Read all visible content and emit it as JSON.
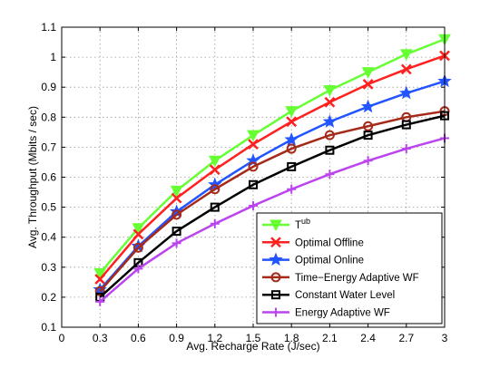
{
  "chart_data": {
    "type": "line",
    "xlabel": "Avg. Recharge Rate (J/sec)",
    "ylabel": "Avg. Throughput (Mbits / sec)",
    "xlim": [
      0,
      3
    ],
    "ylim": [
      0.1,
      1.1
    ],
    "xticks": [
      0,
      0.3,
      0.6,
      0.9,
      1.2,
      1.5,
      1.8,
      2.1,
      2.4,
      2.7,
      3
    ],
    "xtick_labels": [
      "0",
      "0.3",
      "0.6",
      "0.9",
      "1.2",
      "1.5",
      "1.8",
      "2.1",
      "2.4",
      "2.7",
      "3"
    ],
    "yticks": [
      0.1,
      0.2,
      0.3,
      0.4,
      0.5,
      0.6,
      0.7,
      0.8,
      0.9,
      1,
      1.1
    ],
    "ytick_labels": [
      "0.1",
      "0.2",
      "0.3",
      "0.4",
      "0.5",
      "0.6",
      "0.7",
      "0.8",
      "0.9",
      "1",
      "1.1"
    ],
    "grid": true,
    "legend_position": "bottom-right",
    "x": [
      0.3,
      0.6,
      0.9,
      1.2,
      1.5,
      1.8,
      2.1,
      2.4,
      2.7,
      3.0
    ],
    "series": [
      {
        "name": "T",
        "name_sup": "ub",
        "color": "#66ff33",
        "marker": "triangle-down",
        "values": [
          0.28,
          0.43,
          0.555,
          0.655,
          0.74,
          0.82,
          0.89,
          0.95,
          1.01,
          1.06
        ]
      },
      {
        "name": "Optimal Offline",
        "color": "#ff2020",
        "marker": "x",
        "values": [
          0.26,
          0.41,
          0.53,
          0.625,
          0.71,
          0.785,
          0.85,
          0.91,
          0.96,
          1.005
        ]
      },
      {
        "name": "Optimal Online",
        "color": "#2255ff",
        "marker": "star",
        "values": [
          0.225,
          0.37,
          0.485,
          0.575,
          0.655,
          0.725,
          0.785,
          0.835,
          0.88,
          0.92
        ]
      },
      {
        "name": "Time−Energy Adaptive WF",
        "color": "#a52a1a",
        "marker": "circle",
        "values": [
          0.22,
          0.365,
          0.475,
          0.56,
          0.635,
          0.695,
          0.74,
          0.77,
          0.8,
          0.82
        ]
      },
      {
        "name": "Constant Water Level",
        "color": "#000000",
        "marker": "square",
        "values": [
          0.2,
          0.315,
          0.42,
          0.5,
          0.575,
          0.635,
          0.69,
          0.74,
          0.775,
          0.805
        ]
      },
      {
        "name": "Energy Adaptive WF",
        "color": "#bb44ee",
        "marker": "plus",
        "values": [
          0.185,
          0.295,
          0.38,
          0.445,
          0.505,
          0.56,
          0.61,
          0.655,
          0.695,
          0.73
        ]
      }
    ]
  }
}
